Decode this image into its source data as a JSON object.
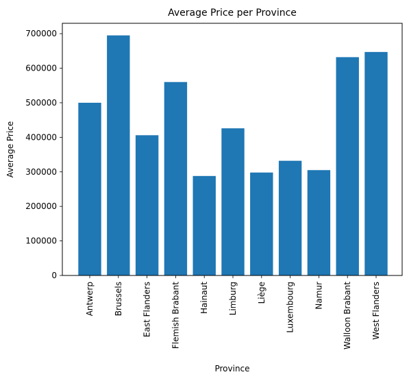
{
  "chart_data": {
    "type": "bar",
    "title": "Average Price per Province",
    "xlabel": "Province",
    "ylabel": "Average Price",
    "categories": [
      "Antwerp",
      "Brussels",
      "East Flanders",
      "Flemish Brabant",
      "Hainaut",
      "Limburg",
      "Liège",
      "Luxembourg",
      "Namur",
      "Walloon Brabant",
      "West Flanders"
    ],
    "values": [
      500000,
      695000,
      406000,
      560000,
      288000,
      426000,
      298000,
      332000,
      305000,
      632000,
      647000
    ],
    "ylim": [
      0,
      730000
    ],
    "yticks": [
      0,
      100000,
      200000,
      300000,
      400000,
      500000,
      600000,
      700000
    ],
    "ytick_labels": [
      "0",
      "100000",
      "200000",
      "300000",
      "400000",
      "500000",
      "600000",
      "700000"
    ],
    "grid": false,
    "legend": "none",
    "bar_color": "#1f77b4"
  }
}
